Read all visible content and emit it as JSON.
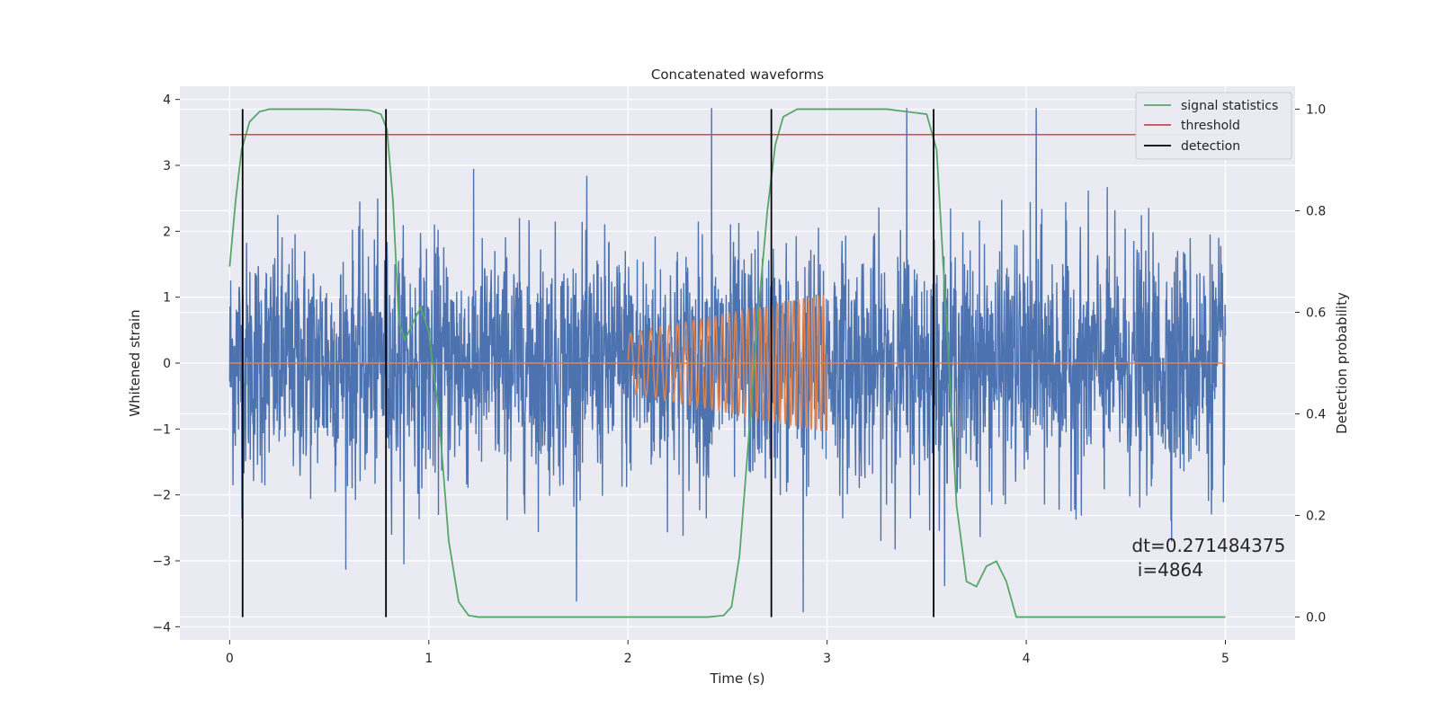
{
  "chart_data": {
    "type": "line",
    "title": "Concatenated waveforms",
    "xlabel": "Time (s)",
    "ylabel": "Whitened strain",
    "ylabel_right": "Detection probability",
    "xlim": [
      -0.25,
      5.35
    ],
    "ylim": [
      -4.2,
      4.2
    ],
    "ylim_right": [
      -0.045,
      1.045
    ],
    "xticks": [
      0,
      1,
      2,
      3,
      4,
      5
    ],
    "yticks": [
      -4,
      -3,
      -2,
      -1,
      0,
      1,
      2,
      3,
      4
    ],
    "yticks_right": [
      0.0,
      0.2,
      0.4,
      0.6,
      0.8,
      1.0
    ],
    "ytick_labels": [
      "−4",
      "−3",
      "−2",
      "−1",
      "0",
      "1",
      "2",
      "3",
      "4"
    ],
    "yticks_right_labels": [
      "0.0",
      "0.2",
      "0.4",
      "0.6",
      "0.8",
      "1.0"
    ],
    "grid": true,
    "legend_position": "top-right",
    "series": [
      {
        "key": "strain",
        "axis": "left",
        "color": "#4c72b0",
        "description_points": "noise with amplitude about ±3.9, 5 s long",
        "x_range": [
          0,
          5
        ],
        "amplitude_std": 0.9,
        "peaks": [
          [
            2.42,
            3.87
          ],
          [
            3.4,
            3.87
          ],
          [
            4.05,
            3.87
          ],
          [
            2.88,
            -3.78
          ]
        ]
      },
      {
        "key": "injection",
        "axis": "left",
        "color": "#dd8452",
        "x_range": [
          2.0,
          3.0
        ],
        "amplitude_start": 0.45,
        "amplitude_end": 1.05,
        "frequency_start": 18,
        "frequency_end": 42
      },
      {
        "name": "signal statistics",
        "key": "stat",
        "axis": "right",
        "color": "#55a868",
        "x": [
          0,
          0.03,
          0.06,
          0.1,
          0.15,
          0.2,
          0.3,
          0.5,
          0.7,
          0.76,
          0.79,
          0.82,
          0.85,
          0.88,
          0.92,
          0.96,
          1.0,
          1.05,
          1.1,
          1.15,
          1.2,
          1.25,
          1.5,
          2.0,
          2.4,
          2.48,
          2.52,
          2.56,
          2.6,
          2.65,
          2.7,
          2.74,
          2.78,
          2.85,
          3.0,
          3.3,
          3.5,
          3.55,
          3.6,
          3.65,
          3.7,
          3.75,
          3.8,
          3.85,
          3.9,
          3.95,
          4.1,
          5.0
        ],
        "y": [
          0.69,
          0.82,
          0.92,
          0.975,
          0.995,
          1.0,
          1.0,
          1.0,
          0.998,
          0.99,
          0.96,
          0.82,
          0.58,
          0.545,
          0.58,
          0.61,
          0.56,
          0.4,
          0.15,
          0.03,
          0.003,
          0.0,
          0.0,
          0.0,
          0.0,
          0.003,
          0.02,
          0.12,
          0.32,
          0.58,
          0.8,
          0.93,
          0.985,
          1.0,
          1.0,
          1.0,
          0.99,
          0.92,
          0.58,
          0.22,
          0.07,
          0.06,
          0.1,
          0.11,
          0.07,
          0.0,
          0.0,
          0.0
        ]
      },
      {
        "name": "threshold",
        "key": "threshold",
        "axis": "right",
        "color": "#c44e52",
        "x": [
          0,
          5
        ],
        "y": [
          0.95,
          0.95
        ]
      },
      {
        "name": "detection",
        "key": "detection",
        "axis": "right",
        "color": "#000000",
        "vlines_x": [
          0.065,
          0.785,
          2.72,
          3.535
        ],
        "y_range": [
          0,
          1
        ]
      }
    ],
    "annotation": {
      "line1": "dt=0.271484375",
      "line2": " i=4864",
      "x": 4.53,
      "y": -3.0
    }
  }
}
